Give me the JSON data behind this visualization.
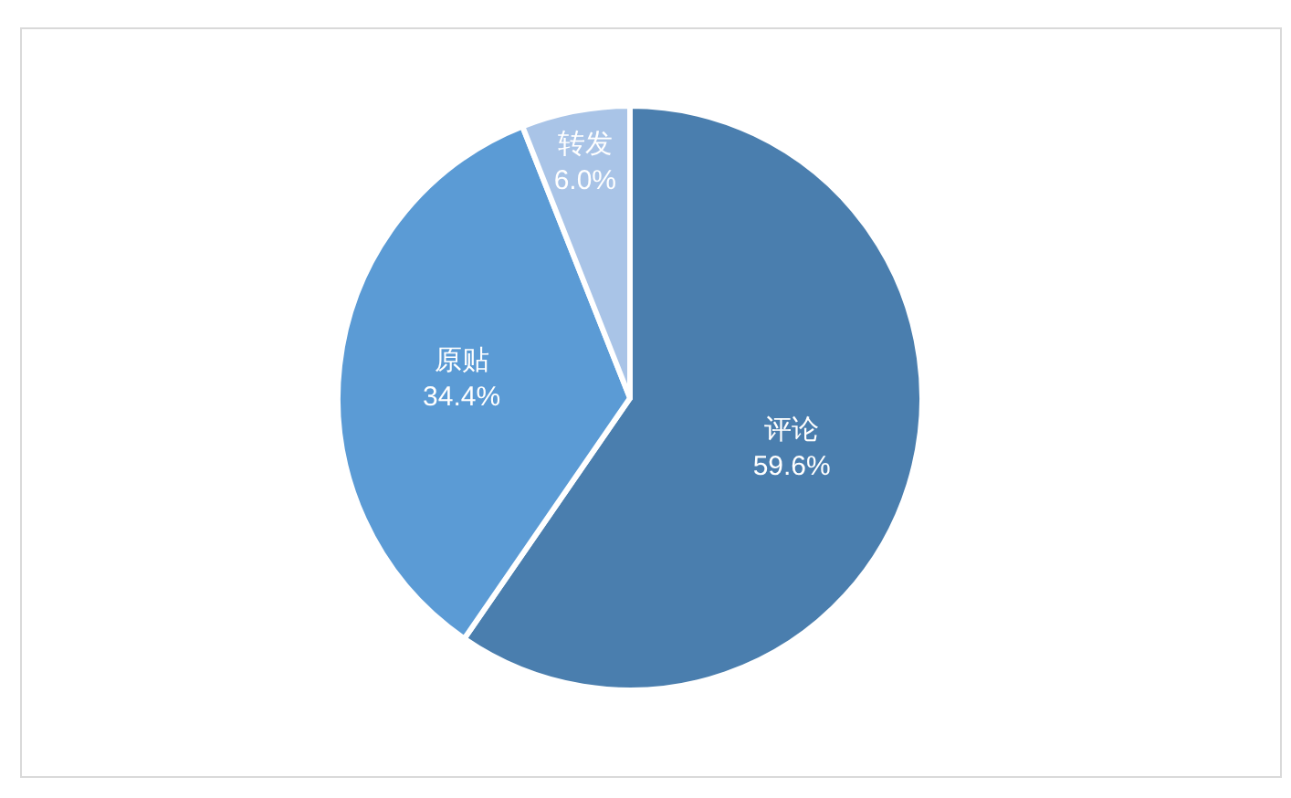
{
  "chart_data": {
    "type": "pie",
    "categories": [
      "评论",
      "原贴",
      "转发"
    ],
    "values": [
      59.6,
      34.4,
      6.0
    ],
    "value_labels": [
      "59.6%",
      "34.4%",
      "6.0%"
    ],
    "colors": [
      "#4a7eae",
      "#5b9bd5",
      "#a9c4e7"
    ],
    "legend": false
  }
}
